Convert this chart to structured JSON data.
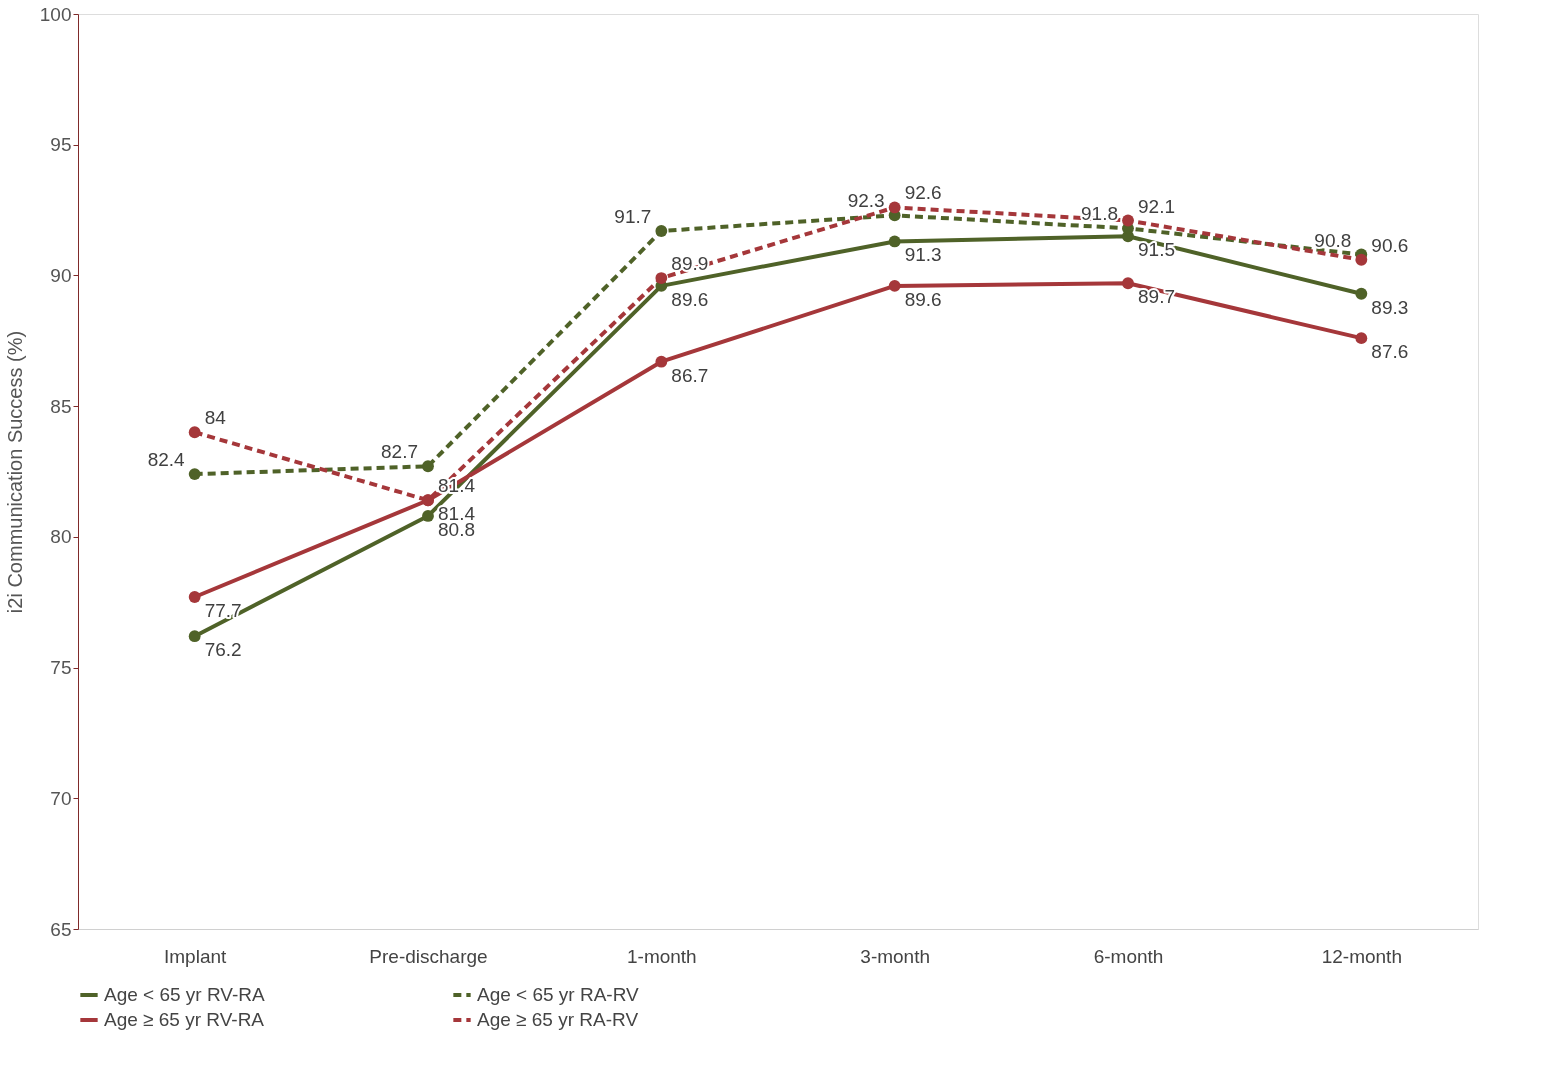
{
  "chart_data": {
    "type": "line",
    "ylabel": "i2i Communication Success (%)",
    "categories": [
      "Implant",
      "Pre-discharge",
      "1-month",
      "3-month",
      "6-month",
      "12-month"
    ],
    "series": [
      {
        "name": "Age < 65 yr RV-RA",
        "color": "#4f6228",
        "line_style": "solid",
        "values": [
          76.2,
          80.8,
          89.6,
          91.3,
          91.5,
          89.3
        ]
      },
      {
        "name": "Age < 65 yr RA-RV",
        "color": "#4f6228",
        "line_style": "dashed",
        "values": [
          82.4,
          82.7,
          91.7,
          92.3,
          91.8,
          90.8
        ]
      },
      {
        "name": "Age ≥ 65 yr RV-RA",
        "color": "#a5373a",
        "line_style": "solid",
        "values": [
          77.7,
          81.4,
          86.7,
          89.6,
          89.7,
          87.6
        ]
      },
      {
        "name": "Age ≥ 65 yr RA-RV",
        "color": "#a5373a",
        "line_style": "dashed",
        "values": [
          84,
          81.4,
          89.9,
          92.6,
          92.1,
          90.6
        ]
      }
    ],
    "ylim": [
      65,
      100
    ],
    "yticks": [
      65,
      70,
      75,
      80,
      85,
      90,
      95,
      100
    ],
    "grid": false,
    "legend": "bottom",
    "marker": "circle",
    "data_labels": true
  }
}
